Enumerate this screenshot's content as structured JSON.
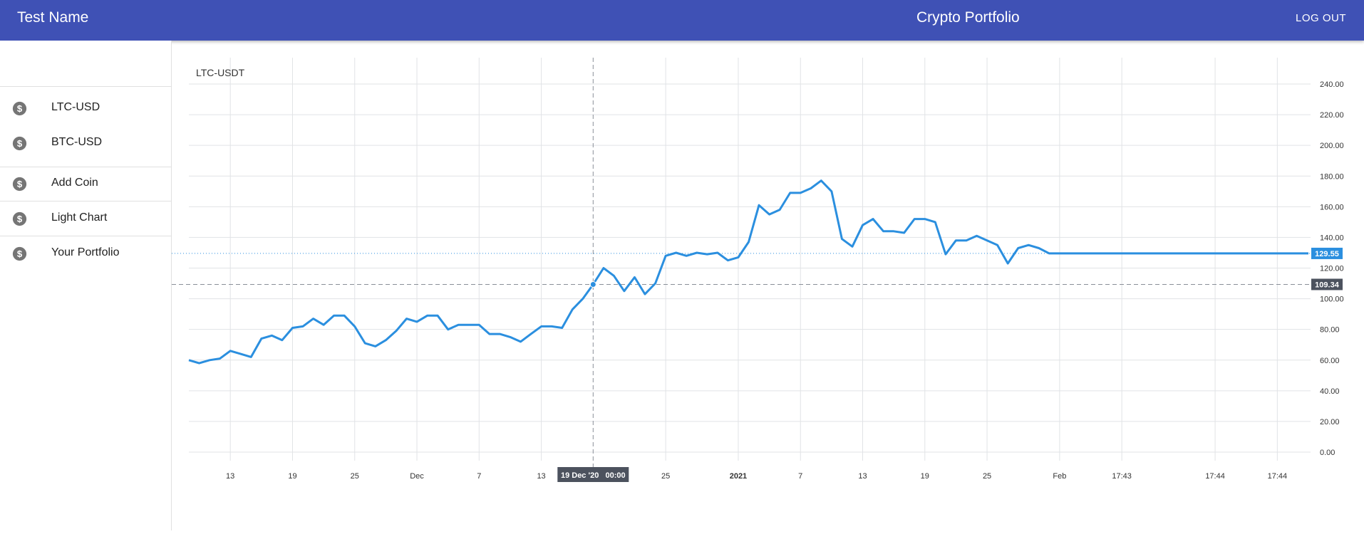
{
  "appbar": {
    "brand": "Test Name",
    "title": "Crypto Portfolio",
    "logout_label": "LOG OUT"
  },
  "sidebar": {
    "items": [
      {
        "label": "LTC-USD",
        "icon": "dollar-icon"
      },
      {
        "label": "BTC-USD",
        "icon": "dollar-icon"
      },
      {
        "label": "Add Coin",
        "icon": "dollar-icon"
      },
      {
        "label": "Light Chart",
        "icon": "dollar-icon"
      },
      {
        "label": "Your Portfolio",
        "icon": "dollar-icon"
      }
    ]
  },
  "colors": {
    "appbar": "#3f51b5",
    "line": "#2b8fdf",
    "last_price_badge": "#2b8fdf",
    "crosshair_badge": "#4c525e"
  },
  "chart_data": {
    "type": "line",
    "title": "LTC-USDT",
    "y_ticks": [
      "240.00",
      "220.00",
      "200.00",
      "180.00",
      "160.00",
      "140.00",
      "120.00",
      "100.00",
      "80.00",
      "60.00",
      "40.00",
      "20.00",
      "0.00"
    ],
    "ylim": [
      0,
      240
    ],
    "x_ticks": [
      {
        "label": "13",
        "index": 4
      },
      {
        "label": "19",
        "index": 10
      },
      {
        "label": "25",
        "index": 16
      },
      {
        "label": "Dec",
        "index": 22
      },
      {
        "label": "7",
        "index": 28
      },
      {
        "label": "13",
        "index": 34
      },
      {
        "label": "25",
        "index": 46
      },
      {
        "label": "2021",
        "index": 53
      },
      {
        "label": "7",
        "index": 59
      },
      {
        "label": "13",
        "index": 65
      },
      {
        "label": "19",
        "index": 71
      },
      {
        "label": "25",
        "index": 77
      },
      {
        "label": "Feb",
        "index": 84
      },
      {
        "label": "17:43",
        "index": 90
      },
      {
        "label": "17:44",
        "index": 99
      },
      {
        "label": "17:44",
        "index": 105
      }
    ],
    "values": [
      60,
      58,
      60,
      61,
      66,
      64,
      62,
      74,
      76,
      73,
      81,
      82,
      87,
      83,
      89,
      89,
      82,
      71,
      69,
      73,
      79,
      87,
      85,
      89,
      89,
      80,
      83,
      83,
      83,
      77,
      77,
      75,
      72,
      77,
      82,
      82,
      81,
      93,
      100,
      109.34,
      120,
      115,
      105,
      114,
      103,
      110,
      128,
      130,
      128,
      130,
      129,
      130,
      125,
      127,
      137,
      161,
      155,
      158,
      169,
      169,
      172,
      177,
      170,
      139,
      134,
      148,
      152,
      144,
      144,
      143,
      152,
      152,
      150,
      129,
      138,
      138,
      141,
      138,
      135,
      123,
      133,
      135,
      133,
      129.55,
      129.55,
      129.55,
      129.55,
      129.55,
      129.55,
      129.55,
      129.55,
      129.55,
      129.55,
      129.55,
      129.55,
      129.55,
      129.55,
      129.55,
      129.55,
      129.55,
      129.55,
      129.55,
      129.55,
      129.55,
      129.55,
      129.55,
      129.55,
      129.55,
      129.55
    ],
    "last_price": {
      "value": 129.55,
      "label": "129.55"
    },
    "crosshair": {
      "index": 39,
      "value": 109.34,
      "price_label": "109.34",
      "time_label": "19 Dec '20   00:00"
    },
    "grid": true
  }
}
